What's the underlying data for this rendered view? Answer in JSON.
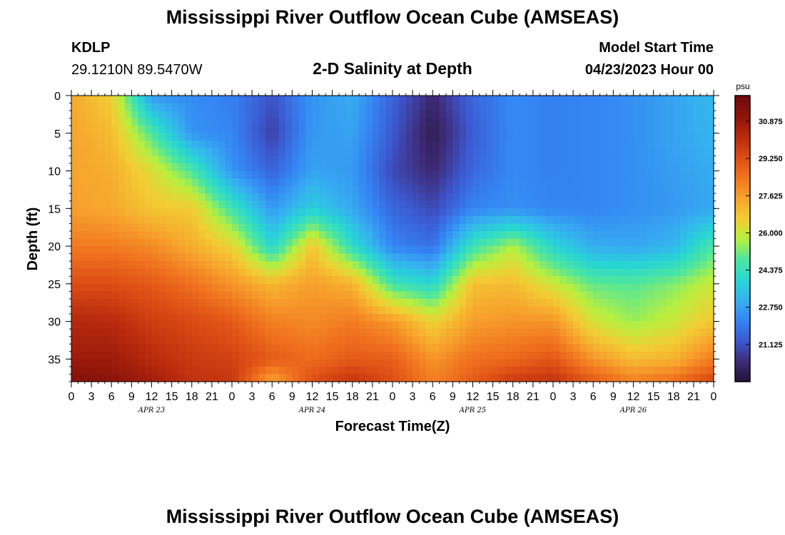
{
  "header": {
    "title": "Mississippi River Outflow Ocean Cube (AMSEAS)",
    "station_id": "KDLP",
    "station_coords": "29.1210N  89.5470W",
    "subtitle": "2-D Salinity at Depth",
    "model_start_label": "Model Start Time",
    "model_start_value": "04/23/2023 Hour 00"
  },
  "footer": {
    "title": "Mississippi River Outflow Ocean Cube (AMSEAS)"
  },
  "chart_data": {
    "type": "heatmap",
    "title": "2-D Salinity at Depth",
    "xlabel": "Forecast Time(Z)",
    "ylabel": "Depth (ft)",
    "x_range_hours": [
      0,
      96
    ],
    "y_range_ft": [
      0,
      38
    ],
    "y_inverted": true,
    "x_tick_labels": [
      "0",
      "3",
      "6",
      "9",
      "12",
      "15",
      "18",
      "21",
      "0",
      "3",
      "6",
      "9",
      "12",
      "15",
      "18",
      "21",
      "0",
      "3",
      "6",
      "9",
      "12",
      "15",
      "18",
      "21",
      "0",
      "3",
      "6",
      "9",
      "12",
      "15",
      "18",
      "21",
      "0"
    ],
    "x_day_labels": [
      "APR 23",
      "APR 24",
      "APR 25",
      "APR 26"
    ],
    "y_ticks": [
      0,
      5,
      10,
      15,
      20,
      25,
      30,
      35
    ],
    "colorbar": {
      "unit": "psu",
      "range": [
        19.5,
        32.0
      ],
      "ticks": [
        21.125,
        22.75,
        24.375,
        26.0,
        27.625,
        29.25,
        30.875
      ],
      "tick_labels": [
        "21.125",
        "22.750",
        "24.375",
        "26.000",
        "27.625",
        "29.250",
        "30.875"
      ],
      "colors": [
        "#231233",
        "#3e2b78",
        "#3c58cf",
        "#3584f3",
        "#36b0f0",
        "#28d6d4",
        "#4ee69e",
        "#b8ef3e",
        "#f2cd34",
        "#f7a22d",
        "#f1741f",
        "#dc4c15",
        "#b82a0d",
        "#8e140a",
        "#6d0a0a"
      ]
    },
    "z_cells": {
      "note": "salinity (psu) at depth rows x forecast-hour columns",
      "depths_ft": [
        0,
        5,
        10,
        15,
        20,
        25,
        30,
        35,
        38
      ],
      "hours": [
        0,
        6,
        12,
        18,
        24,
        30,
        36,
        42,
        48,
        54,
        60,
        66,
        72,
        78,
        84,
        90,
        96
      ],
      "values": [
        [
          27.4,
          26.6,
          22.6,
          22.3,
          22.1,
          21.2,
          22.5,
          23.0,
          21.5,
          20.3,
          21.6,
          22.3,
          22.1,
          22.2,
          22.4,
          22.8,
          23.3
        ],
        [
          27.5,
          27.0,
          24.8,
          22.5,
          22.2,
          20.8,
          22.6,
          22.8,
          21.3,
          19.9,
          21.4,
          22.3,
          22.1,
          22.2,
          22.4,
          22.8,
          23.2
        ],
        [
          27.5,
          27.3,
          26.3,
          24.8,
          22.5,
          21.5,
          22.8,
          22.6,
          21.0,
          20.3,
          21.6,
          22.3,
          22.1,
          22.2,
          22.4,
          22.7,
          23.0
        ],
        [
          27.6,
          27.4,
          26.8,
          26.7,
          24.6,
          22.6,
          23.8,
          22.9,
          21.6,
          21.0,
          22.2,
          22.4,
          22.2,
          22.2,
          22.4,
          22.6,
          22.9
        ],
        [
          28.3,
          28.3,
          28.0,
          27.3,
          26.5,
          24.0,
          26.8,
          24.2,
          22.2,
          21.8,
          24.5,
          25.7,
          24.0,
          23.0,
          22.9,
          23.2,
          24.8
        ],
        [
          29.3,
          29.3,
          29.0,
          28.5,
          27.8,
          27.1,
          27.6,
          27.2,
          24.6,
          24.0,
          26.9,
          27.0,
          26.0,
          25.0,
          24.9,
          25.3,
          26.0
        ],
        [
          30.3,
          30.2,
          29.7,
          29.4,
          29.0,
          28.2,
          28.0,
          28.3,
          27.7,
          26.5,
          27.6,
          27.8,
          27.8,
          26.1,
          25.5,
          26.0,
          26.8
        ],
        [
          30.8,
          30.8,
          30.2,
          29.8,
          29.6,
          29.0,
          28.6,
          29.0,
          28.9,
          27.8,
          28.5,
          28.7,
          29.1,
          27.8,
          27.0,
          27.2,
          28.3
        ],
        [
          31.4,
          31.2,
          30.7,
          30.0,
          29.9,
          27.4,
          29.3,
          30.0,
          29.3,
          28.2,
          29.0,
          29.8,
          30.0,
          29.0,
          28.2,
          28.6,
          29.5
        ]
      ]
    }
  }
}
